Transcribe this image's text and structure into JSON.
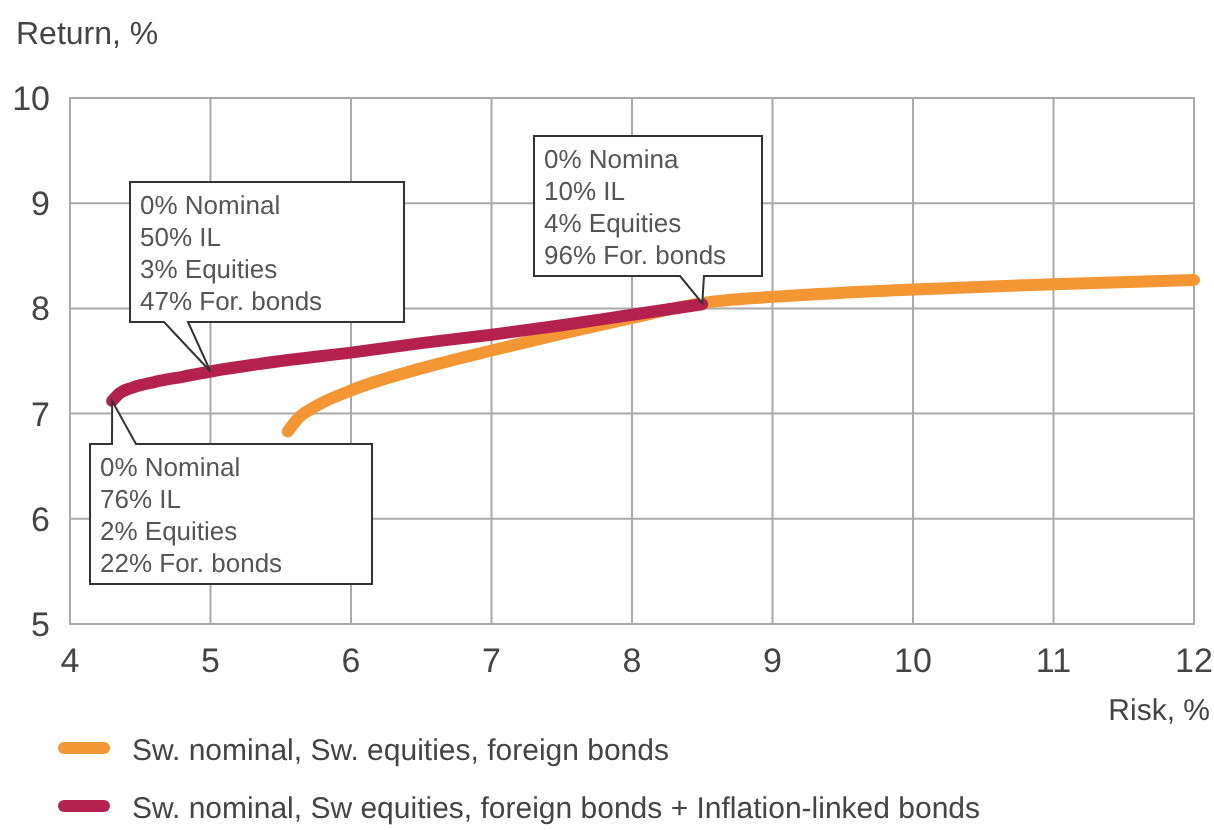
{
  "chart_data": {
    "type": "line",
    "xlabel": "Risk, %",
    "ylabel": "Return, %",
    "xlim": [
      4,
      12
    ],
    "xticks": [
      4,
      5,
      6,
      7,
      8,
      9,
      10,
      11,
      12
    ],
    "ylim": [
      5,
      10
    ],
    "yticks": [
      5,
      6,
      7,
      8,
      9,
      10
    ],
    "grid": true,
    "legend": "bottom",
    "marker": "none",
    "line_style": "solid",
    "series": [
      {
        "name": "Sw. nominal, Sw. equities, foreign bonds",
        "color": "#f39633",
        "x": [
          5.55,
          5.62,
          5.75,
          6,
          6.5,
          7,
          7.5,
          8,
          8.5,
          9,
          10,
          11,
          12
        ],
        "values": [
          6.83,
          6.95,
          7.07,
          7.22,
          7.43,
          7.6,
          7.76,
          7.91,
          8.05,
          8.11,
          8.18,
          8.23,
          8.27
        ]
      },
      {
        "name": "Sw. nominal, Sw equities, foreign bonds + Inflation-linked bonds",
        "color": "#b5214f",
        "x": [
          4.3,
          4.35,
          4.45,
          4.6,
          4.8,
          5,
          5.5,
          6,
          6.5,
          7,
          7.5,
          8,
          8.5
        ],
        "values": [
          7.12,
          7.19,
          7.25,
          7.3,
          7.35,
          7.4,
          7.5,
          7.58,
          7.67,
          7.75,
          7.84,
          7.94,
          8.04
        ]
      }
    ],
    "annotations": [
      {
        "text": "0% Nominal\n50% IL\n3% Equities\n47% For. bonds",
        "x": 5,
        "y": 7.4
      },
      {
        "text": "0% Nominal\n76% IL\n2% Equities\n22% For. bonds",
        "x": 4.3,
        "y": 7.12
      },
      {
        "text": "0% Nomina\n10% IL\n4% Equities\n96% For. bonds",
        "x": 8.5,
        "y": 8.05
      }
    ]
  }
}
